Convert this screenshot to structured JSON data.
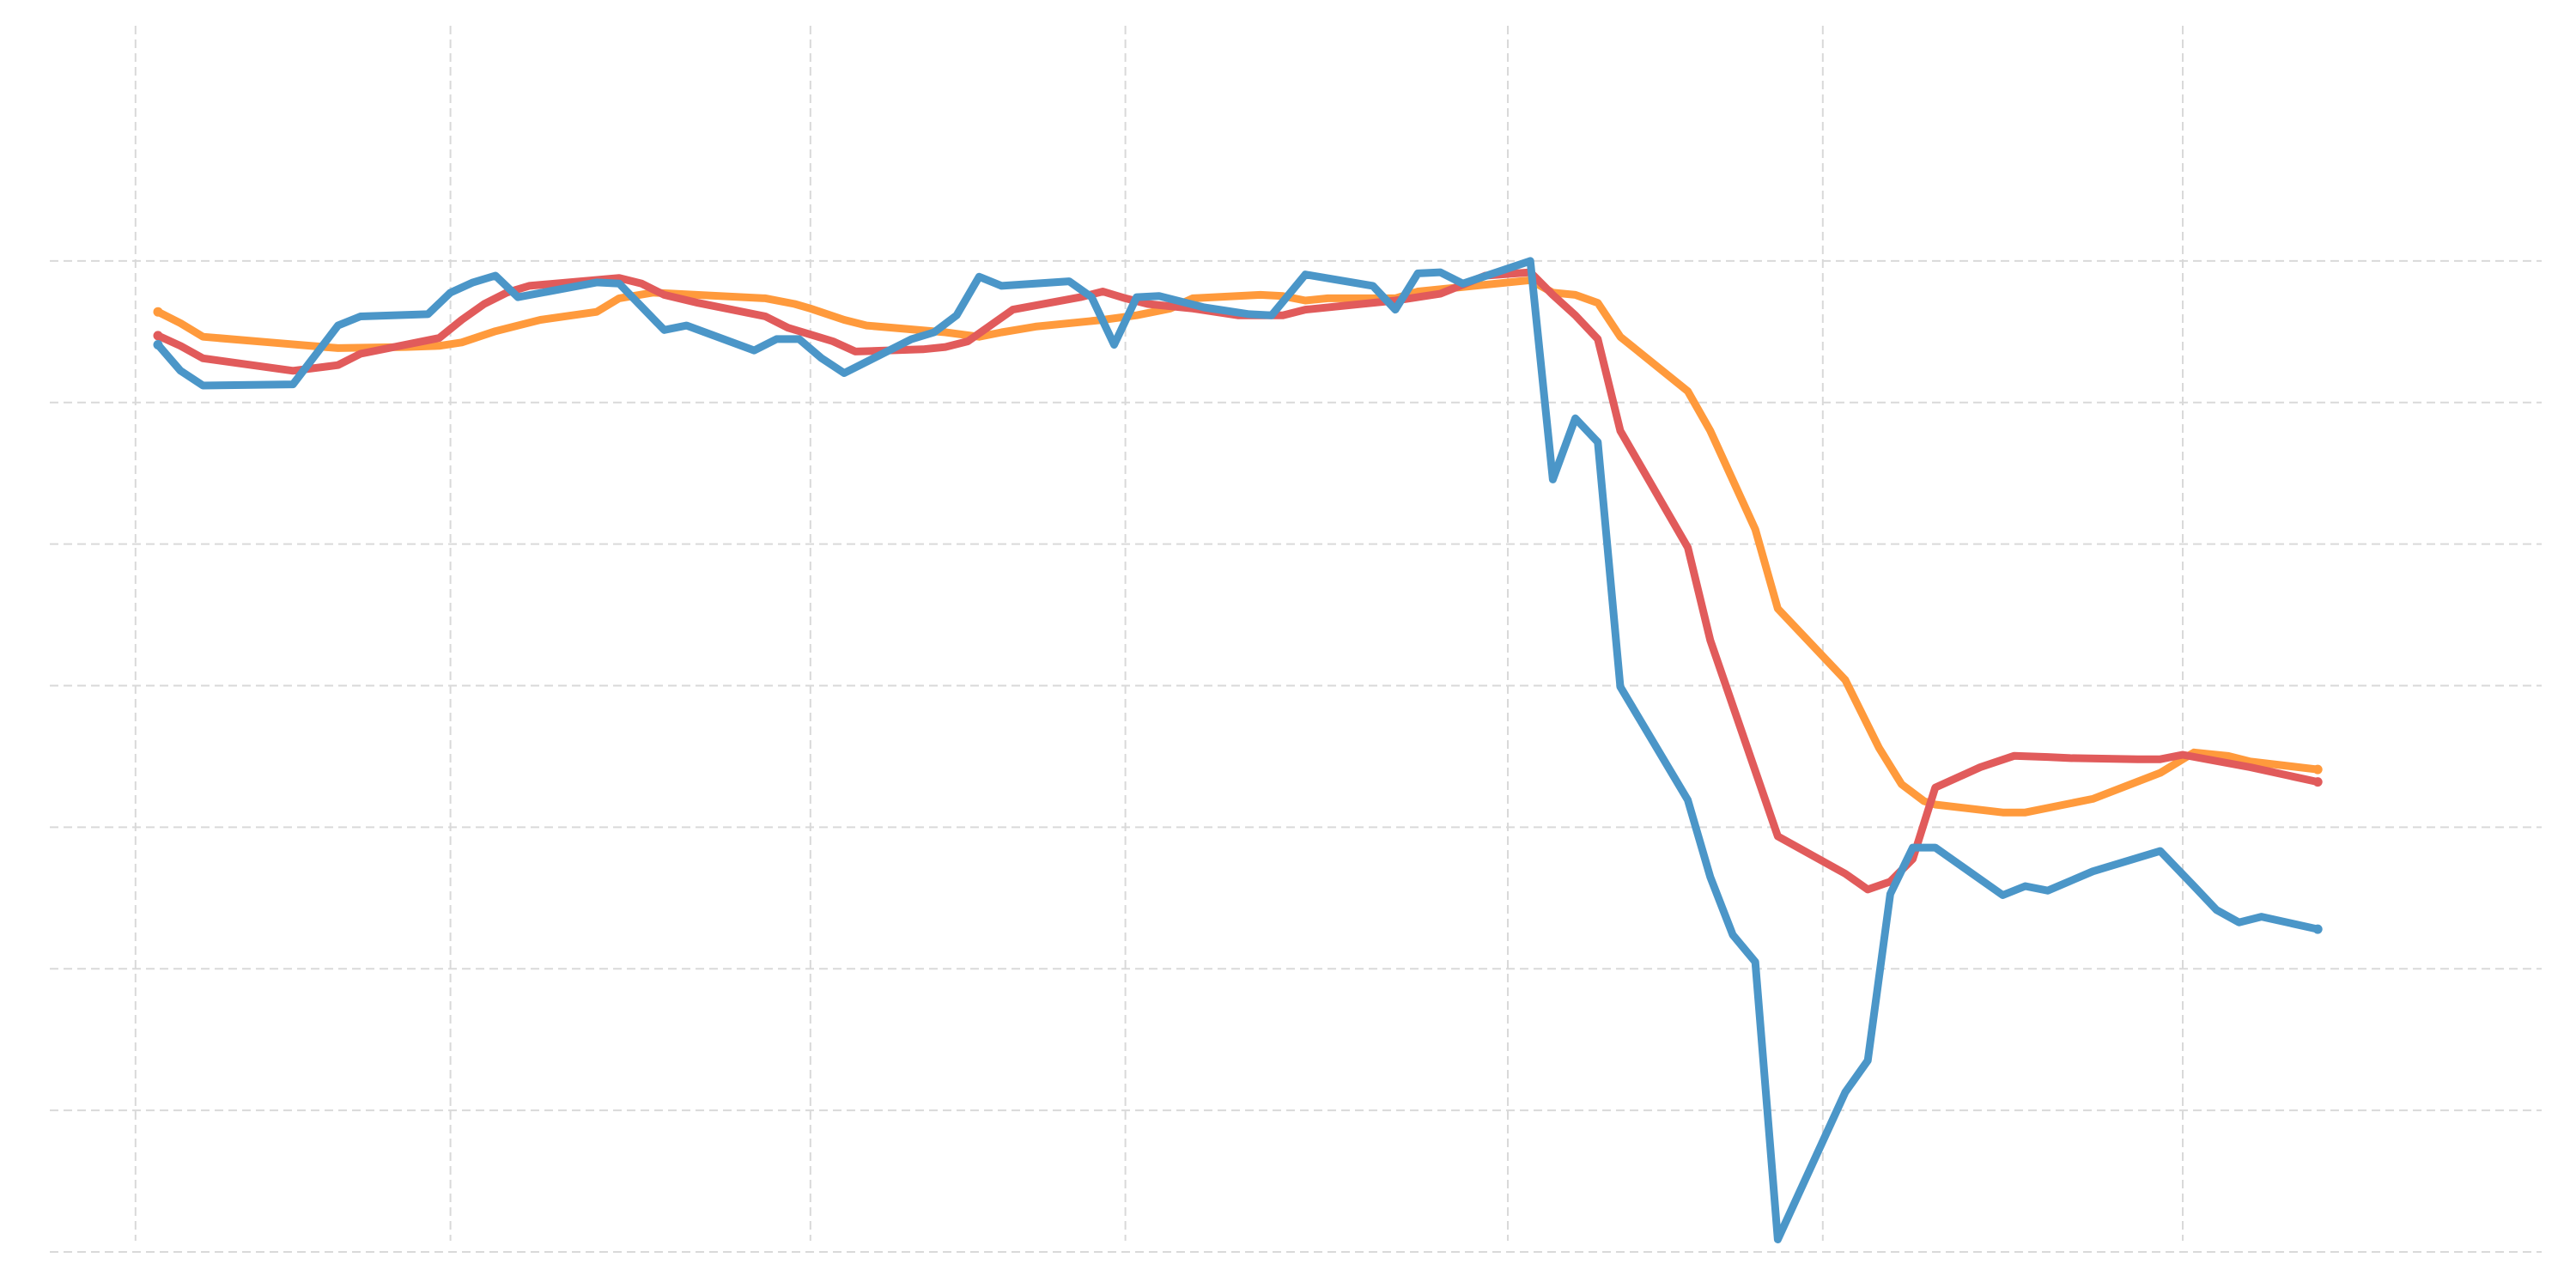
{
  "chart_data": {
    "type": "line",
    "title": "",
    "xlabel": "",
    "ylabel": "",
    "grid": true,
    "legend": "none",
    "xlim": [
      0,
      100
    ],
    "ylim": [
      0,
      100
    ],
    "x_gridlines": [
      -1,
      13,
      29,
      43,
      60,
      74,
      90
    ],
    "y_gridlines": [
      0,
      12.5,
      25,
      37.5,
      50,
      62.5,
      75,
      87.5
    ],
    "series": [
      {
        "name": "orange",
        "color": "#ff9a3c",
        "points": [
          [
            0,
            83
          ],
          [
            1,
            82
          ],
          [
            2,
            80.8
          ],
          [
            5,
            80.3
          ],
          [
            8,
            79.8
          ],
          [
            11,
            79.9
          ],
          [
            12.5,
            80
          ],
          [
            13.5,
            80.3
          ],
          [
            15,
            81.3
          ],
          [
            17,
            82.3
          ],
          [
            19.5,
            83
          ],
          [
            20.5,
            84.2
          ],
          [
            22,
            84.7
          ],
          [
            27,
            84.2
          ],
          [
            28.3,
            83.7
          ],
          [
            29,
            83.3
          ],
          [
            30.5,
            82.3
          ],
          [
            31.5,
            81.8
          ],
          [
            35,
            81.2
          ],
          [
            36.5,
            80.8
          ],
          [
            37.5,
            81.2
          ],
          [
            39,
            81.7
          ],
          [
            42,
            82.3
          ],
          [
            43.5,
            82.7
          ],
          [
            45,
            83.3
          ],
          [
            46,
            84.2
          ],
          [
            49,
            84.5
          ],
          [
            50,
            84.4
          ],
          [
            51,
            84
          ],
          [
            52,
            84.2
          ],
          [
            55,
            84.2
          ],
          [
            56,
            84.8
          ],
          [
            57,
            85
          ],
          [
            61,
            85.8
          ],
          [
            62,
            84.7
          ],
          [
            63,
            84.5
          ],
          [
            64,
            83.8
          ],
          [
            65,
            80.8
          ],
          [
            68,
            76
          ],
          [
            69,
            72.5
          ],
          [
            71,
            63.8
          ],
          [
            72,
            56.8
          ],
          [
            75,
            50.5
          ],
          [
            76.5,
            44.5
          ],
          [
            77.5,
            41.3
          ],
          [
            78.5,
            39.8
          ],
          [
            79,
            39.5
          ],
          [
            82,
            38.8
          ],
          [
            83,
            38.8
          ],
          [
            86,
            40
          ],
          [
            89,
            42.3
          ],
          [
            90.5,
            44.1
          ],
          [
            92,
            43.8
          ],
          [
            93,
            43.3
          ],
          [
            96,
            42.6
          ]
        ]
      },
      {
        "name": "red",
        "color": "#e15b5b",
        "points": [
          [
            0,
            80.9
          ],
          [
            1,
            80
          ],
          [
            2,
            78.9
          ],
          [
            6,
            77.8
          ],
          [
            8,
            78.3
          ],
          [
            9,
            79.3
          ],
          [
            12.5,
            80.7
          ],
          [
            13.5,
            82.3
          ],
          [
            14.5,
            83.7
          ],
          [
            15.5,
            84.7
          ],
          [
            16.5,
            85.3
          ],
          [
            20.5,
            86
          ],
          [
            21.5,
            85.5
          ],
          [
            22.5,
            84.5
          ],
          [
            24,
            83.8
          ],
          [
            27,
            82.6
          ],
          [
            28,
            81.6
          ],
          [
            29,
            81
          ],
          [
            30,
            80.4
          ],
          [
            31,
            79.5
          ],
          [
            34,
            79.7
          ],
          [
            35,
            79.9
          ],
          [
            36,
            80.4
          ],
          [
            38,
            83.2
          ],
          [
            41,
            84.3
          ],
          [
            42,
            84.8
          ],
          [
            43,
            84.2
          ],
          [
            44,
            83.7
          ],
          [
            46,
            83.3
          ],
          [
            48,
            82.7
          ],
          [
            50,
            82.7
          ],
          [
            51,
            83.2
          ],
          [
            55,
            84
          ],
          [
            57,
            84.6
          ],
          [
            58,
            85.4
          ],
          [
            59,
            86.2
          ],
          [
            61,
            86.5
          ],
          [
            62,
            84.5
          ],
          [
            63,
            82.7
          ],
          [
            64,
            80.6
          ],
          [
            65,
            72.5
          ],
          [
            68,
            62.2
          ],
          [
            69,
            54
          ],
          [
            72,
            36.7
          ],
          [
            75,
            33.4
          ],
          [
            76,
            32
          ],
          [
            77,
            32.7
          ],
          [
            78,
            34.7
          ],
          [
            79,
            41
          ],
          [
            81,
            42.8
          ],
          [
            82.5,
            43.8
          ],
          [
            84,
            43.7
          ],
          [
            85,
            43.6
          ],
          [
            88,
            43.5
          ],
          [
            89,
            43.5
          ],
          [
            90,
            43.9
          ],
          [
            93,
            42.8
          ],
          [
            96,
            41.5
          ]
        ]
      },
      {
        "name": "blue",
        "color": "#4b96c8",
        "points": [
          [
            0,
            80.1
          ],
          [
            1,
            77.8
          ],
          [
            2,
            76.5
          ],
          [
            6,
            76.6
          ],
          [
            8,
            81.8
          ],
          [
            9,
            82.6
          ],
          [
            12,
            82.8
          ],
          [
            13,
            84.7
          ],
          [
            14,
            85.6
          ],
          [
            15,
            86.2
          ],
          [
            16,
            84.3
          ],
          [
            19.5,
            85.6
          ],
          [
            20.5,
            85.5
          ],
          [
            22.5,
            81.4
          ],
          [
            23.5,
            81.8
          ],
          [
            26.5,
            79.6
          ],
          [
            27.5,
            80.6
          ],
          [
            28.5,
            80.6
          ],
          [
            29.5,
            78.9
          ],
          [
            30.5,
            77.6
          ],
          [
            33.5,
            80.6
          ],
          [
            34.5,
            81.2
          ],
          [
            35.5,
            82.7
          ],
          [
            36.5,
            86.1
          ],
          [
            37.5,
            85.3
          ],
          [
            40.5,
            85.7
          ],
          [
            41.5,
            84.3
          ],
          [
            42.5,
            80.1
          ],
          [
            43.5,
            84.3
          ],
          [
            44.5,
            84.4
          ],
          [
            46.5,
            83.4
          ],
          [
            47.5,
            83.1
          ],
          [
            48.5,
            82.8
          ],
          [
            49.5,
            82.7
          ],
          [
            51,
            86.3
          ],
          [
            54,
            85.3
          ],
          [
            55,
            83.2
          ],
          [
            56,
            86.4
          ],
          [
            57,
            86.5
          ],
          [
            58,
            85.5
          ],
          [
            61,
            87.5
          ],
          [
            62,
            68.2
          ],
          [
            63,
            73.6
          ],
          [
            64,
            71.5
          ],
          [
            65,
            49.9
          ],
          [
            68,
            39.9
          ],
          [
            69,
            33.1
          ],
          [
            70,
            28
          ],
          [
            71,
            25.6
          ],
          [
            72,
            1.1
          ],
          [
            75,
            14.1
          ],
          [
            76,
            16.9
          ],
          [
            77,
            31.6
          ],
          [
            78,
            35.7
          ],
          [
            79,
            35.7
          ],
          [
            82,
            31.5
          ],
          [
            83,
            32.3
          ],
          [
            84,
            31.9
          ],
          [
            86,
            33.6
          ],
          [
            89,
            35.4
          ],
          [
            90.5,
            32.3
          ],
          [
            91.5,
            30.2
          ],
          [
            92.5,
            29.1
          ],
          [
            93.5,
            29.6
          ],
          [
            96,
            28.5
          ]
        ]
      }
    ]
  }
}
